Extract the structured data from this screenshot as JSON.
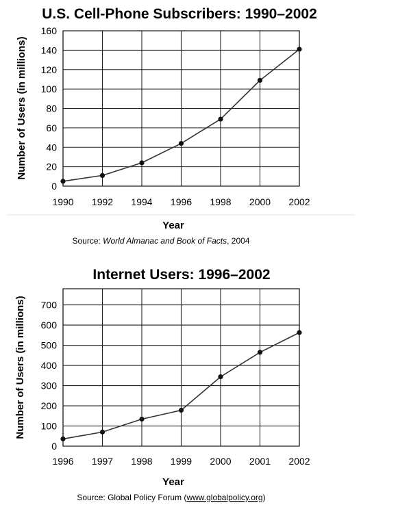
{
  "chart_data": [
    {
      "type": "line",
      "title": "U.S. Cell-Phone Subscribers: 1990–2002",
      "xlabel": "Year",
      "ylabel": "Number of Users (in millions)",
      "source_prefix": "Source: ",
      "source_italic": "World Almanac and Book of Facts",
      "source_suffix": ", 2004",
      "x": [
        "1990",
        "1992",
        "1994",
        "1996",
        "1998",
        "2000",
        "2002"
      ],
      "values": [
        5,
        11,
        24,
        44,
        69,
        109,
        141
      ],
      "yticks": [
        0,
        20,
        40,
        60,
        80,
        100,
        120,
        140,
        160
      ],
      "ylim": [
        0,
        160
      ],
      "grid": true,
      "legend": "none"
    },
    {
      "type": "line",
      "title": "Internet Users: 1996–2002",
      "xlabel": "Year",
      "ylabel": "Number of Users (in millions)",
      "source_prefix": "Source: Global Policy Forum (",
      "source_link": "www.globalpolicy.org",
      "source_suffix": ")",
      "x": [
        "1996",
        "1997",
        "1998",
        "1999",
        "2000",
        "2001",
        "2002"
      ],
      "values": [
        36,
        70,
        134,
        178,
        344,
        465,
        563
      ],
      "yticks": [
        0,
        100,
        200,
        300,
        400,
        500,
        600,
        700
      ],
      "ylim": [
        0,
        780
      ],
      "grid": true,
      "legend": "none"
    }
  ]
}
